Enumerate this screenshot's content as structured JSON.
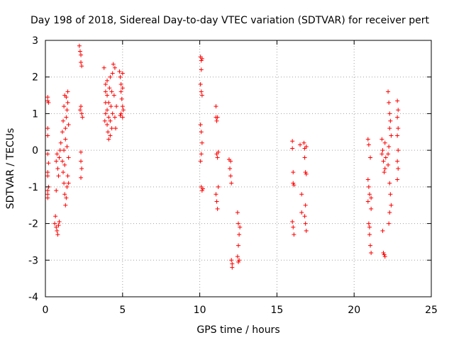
{
  "chart_data": {
    "type": "scatter",
    "title": "Day 198 of 2018, Sidereal Day-to-day VTEC variation (SDTVAR) for receiver pert",
    "xlabel": "GPS time / hours",
    "ylabel": "SDTVAR / TECUs",
    "xlim": [
      0,
      25
    ],
    "ylim": [
      -4,
      3
    ],
    "xticks": [
      0,
      5,
      10,
      15,
      20,
      25
    ],
    "yticks": [
      -4,
      -3,
      -2,
      -1,
      0,
      1,
      2,
      3
    ],
    "grid": true,
    "marker": "+",
    "color": "#ff0000",
    "series": [
      {
        "name": "pert",
        "points": [
          [
            0.15,
            1.45
          ],
          [
            0.15,
            1.35
          ],
          [
            0.15,
            0.6
          ],
          [
            0.15,
            0.4
          ],
          [
            0.15,
            -0.1
          ],
          [
            0.15,
            -0.6
          ],
          [
            0.15,
            -0.7
          ],
          [
            0.15,
            -1.1
          ],
          [
            0.15,
            -1.2
          ],
          [
            0.15,
            -1.3
          ],
          [
            0.2,
            1.3
          ],
          [
            0.2,
            -0.35
          ],
          [
            0.2,
            -1.0
          ],
          [
            0.6,
            -2.0
          ],
          [
            0.65,
            -1.8
          ],
          [
            0.7,
            -2.1
          ],
          [
            0.75,
            -2.2
          ],
          [
            0.8,
            -2.3
          ],
          [
            0.85,
            -2.05
          ],
          [
            0.9,
            -1.95
          ],
          [
            0.7,
            -0.3
          ],
          [
            0.75,
            -0.1
          ],
          [
            0.8,
            -0.5
          ],
          [
            0.85,
            -0.7
          ],
          [
            0.9,
            -0.2
          ],
          [
            0.95,
            0.0
          ],
          [
            1.0,
            0.2
          ],
          [
            0.7,
            -1.1
          ],
          [
            1.1,
            0.5
          ],
          [
            1.15,
            0.8
          ],
          [
            1.2,
            1.2
          ],
          [
            1.25,
            1.5
          ],
          [
            1.1,
            -0.3
          ],
          [
            1.15,
            -0.6
          ],
          [
            1.2,
            -0.9
          ],
          [
            1.25,
            -1.2
          ],
          [
            1.3,
            -1.5
          ],
          [
            1.35,
            -1.3
          ],
          [
            1.4,
            -1.0
          ],
          [
            1.45,
            -0.7
          ],
          [
            1.5,
            -0.9
          ],
          [
            1.3,
            0.6
          ],
          [
            1.35,
            0.9
          ],
          [
            1.4,
            1.1
          ],
          [
            1.45,
            1.3
          ],
          [
            1.5,
            0.7
          ],
          [
            1.3,
            0.3
          ],
          [
            1.4,
            0.1
          ],
          [
            1.5,
            -0.2
          ],
          [
            1.35,
            1.45
          ],
          [
            1.45,
            1.6
          ],
          [
            1.2,
            0.0
          ],
          [
            1.25,
            -0.4
          ],
          [
            2.2,
            2.85
          ],
          [
            2.25,
            2.7
          ],
          [
            2.3,
            2.6
          ],
          [
            2.3,
            2.4
          ],
          [
            2.35,
            2.3
          ],
          [
            2.3,
            1.2
          ],
          [
            2.35,
            1.0
          ],
          [
            2.4,
            0.9
          ],
          [
            2.25,
            1.1
          ],
          [
            2.3,
            -0.05
          ],
          [
            2.3,
            -0.3
          ],
          [
            2.35,
            -0.5
          ],
          [
            2.3,
            -0.75
          ],
          [
            3.8,
            2.25
          ],
          [
            3.9,
            1.8
          ],
          [
            3.9,
            1.6
          ],
          [
            3.9,
            1.3
          ],
          [
            3.9,
            1.0
          ],
          [
            3.85,
            0.8
          ],
          [
            4.0,
            1.9
          ],
          [
            4.0,
            1.5
          ],
          [
            4.0,
            1.1
          ],
          [
            4.0,
            0.7
          ],
          [
            4.05,
            0.5
          ],
          [
            4.1,
            0.9
          ],
          [
            4.1,
            1.3
          ],
          [
            4.15,
            1.7
          ],
          [
            4.2,
            0.4
          ],
          [
            4.2,
            0.8
          ],
          [
            4.25,
            1.2
          ],
          [
            4.3,
            1.6
          ],
          [
            4.3,
            0.6
          ],
          [
            4.35,
            1.0
          ],
          [
            4.35,
            2.1
          ],
          [
            4.4,
            2.35
          ],
          [
            4.45,
            1.5
          ],
          [
            4.5,
            0.9
          ],
          [
            4.5,
            2.25
          ],
          [
            4.55,
            0.6
          ],
          [
            4.6,
            1.2
          ],
          [
            4.2,
            2.0
          ],
          [
            4.1,
            0.3
          ],
          [
            4.8,
            2.15
          ],
          [
            4.85,
            2.0
          ],
          [
            4.9,
            1.8
          ],
          [
            4.9,
            1.6
          ],
          [
            4.95,
            1.4
          ],
          [
            5.0,
            1.7
          ],
          [
            5.0,
            1.2
          ],
          [
            4.9,
            1.0
          ],
          [
            5.0,
            0.9
          ],
          [
            5.05,
            1.1
          ],
          [
            4.85,
            0.95
          ],
          [
            5.0,
            2.1
          ],
          [
            10.05,
            2.55
          ],
          [
            10.1,
            2.45
          ],
          [
            10.15,
            2.5
          ],
          [
            10.1,
            2.2
          ],
          [
            10.05,
            1.8
          ],
          [
            10.1,
            1.6
          ],
          [
            10.15,
            1.5
          ],
          [
            10.05,
            0.7
          ],
          [
            10.1,
            0.5
          ],
          [
            10.15,
            0.2
          ],
          [
            10.1,
            -0.1
          ],
          [
            10.05,
            -0.3
          ],
          [
            10.1,
            -1.0
          ],
          [
            10.15,
            -1.1
          ],
          [
            10.2,
            -1.05
          ],
          [
            11.05,
            1.2
          ],
          [
            11.05,
            0.9
          ],
          [
            11.1,
            0.8
          ],
          [
            11.15,
            0.9
          ],
          [
            11.1,
            -0.1
          ],
          [
            11.15,
            -0.2
          ],
          [
            11.2,
            -0.05
          ],
          [
            11.05,
            -1.2
          ],
          [
            11.1,
            -1.4
          ],
          [
            11.15,
            -1.6
          ],
          [
            11.2,
            -1.0
          ],
          [
            11.9,
            -0.25
          ],
          [
            11.95,
            -0.5
          ],
          [
            12.0,
            -0.7
          ],
          [
            12.05,
            -0.9
          ],
          [
            12.0,
            -0.3
          ],
          [
            12.05,
            -3.0
          ],
          [
            12.1,
            -3.2
          ],
          [
            12.1,
            -3.1
          ],
          [
            12.45,
            -1.7
          ],
          [
            12.5,
            -2.0
          ],
          [
            12.55,
            -2.3
          ],
          [
            12.5,
            -2.6
          ],
          [
            12.45,
            -2.9
          ],
          [
            12.5,
            -3.05
          ],
          [
            12.55,
            -3.0
          ],
          [
            12.6,
            -2.1
          ],
          [
            16.0,
            0.25
          ],
          [
            16.0,
            0.05
          ],
          [
            16.05,
            -0.6
          ],
          [
            16.05,
            -0.9
          ],
          [
            16.1,
            -0.95
          ],
          [
            16.0,
            -1.95
          ],
          [
            16.05,
            -2.1
          ],
          [
            16.1,
            -2.3
          ],
          [
            16.5,
            0.15
          ],
          [
            16.6,
            -1.2
          ],
          [
            16.6,
            -1.7
          ],
          [
            16.75,
            0.2
          ],
          [
            16.8,
            0.05
          ],
          [
            16.8,
            -0.2
          ],
          [
            16.85,
            -0.6
          ],
          [
            16.85,
            -1.5
          ],
          [
            16.8,
            -1.8
          ],
          [
            16.85,
            -2.0
          ],
          [
            16.9,
            -2.2
          ],
          [
            16.9,
            0.1
          ],
          [
            16.9,
            -0.65
          ],
          [
            20.9,
            0.3
          ],
          [
            20.95,
            0.15
          ],
          [
            20.9,
            -0.8
          ],
          [
            20.95,
            -1.0
          ],
          [
            21.0,
            -1.2
          ],
          [
            20.9,
            -1.4
          ],
          [
            20.95,
            -2.0
          ],
          [
            21.0,
            -2.3
          ],
          [
            21.05,
            -2.6
          ],
          [
            21.1,
            -2.8
          ],
          [
            21.1,
            -1.6
          ],
          [
            21.05,
            -0.2
          ],
          [
            21.1,
            -1.3
          ],
          [
            21.0,
            -2.1
          ],
          [
            21.8,
            0.3
          ],
          [
            21.85,
            0.0
          ],
          [
            21.9,
            -0.3
          ],
          [
            21.95,
            -0.6
          ],
          [
            21.85,
            -2.2
          ],
          [
            21.9,
            -2.8
          ],
          [
            21.95,
            -2.85
          ],
          [
            22.0,
            -2.9
          ],
          [
            22.0,
            0.2
          ],
          [
            22.05,
            -0.2
          ],
          [
            22.0,
            -0.5
          ],
          [
            21.8,
            -0.1
          ],
          [
            22.2,
            1.6
          ],
          [
            22.25,
            1.3
          ],
          [
            22.3,
            1.0
          ],
          [
            22.35,
            0.8
          ],
          [
            22.3,
            0.6
          ],
          [
            22.25,
            0.1
          ],
          [
            22.2,
            -0.1
          ],
          [
            22.2,
            -0.4
          ],
          [
            22.3,
            -0.9
          ],
          [
            22.35,
            -1.2
          ],
          [
            22.4,
            -1.5
          ],
          [
            22.3,
            -1.7
          ],
          [
            22.25,
            -2.0
          ],
          [
            22.4,
            0.4
          ],
          [
            22.8,
            1.35
          ],
          [
            22.85,
            1.1
          ],
          [
            22.8,
            0.9
          ],
          [
            22.85,
            0.6
          ],
          [
            22.8,
            0.4
          ],
          [
            22.85,
            0.0
          ],
          [
            22.8,
            -0.3
          ],
          [
            22.85,
            -0.5
          ],
          [
            22.8,
            -0.8
          ]
        ]
      }
    ]
  }
}
